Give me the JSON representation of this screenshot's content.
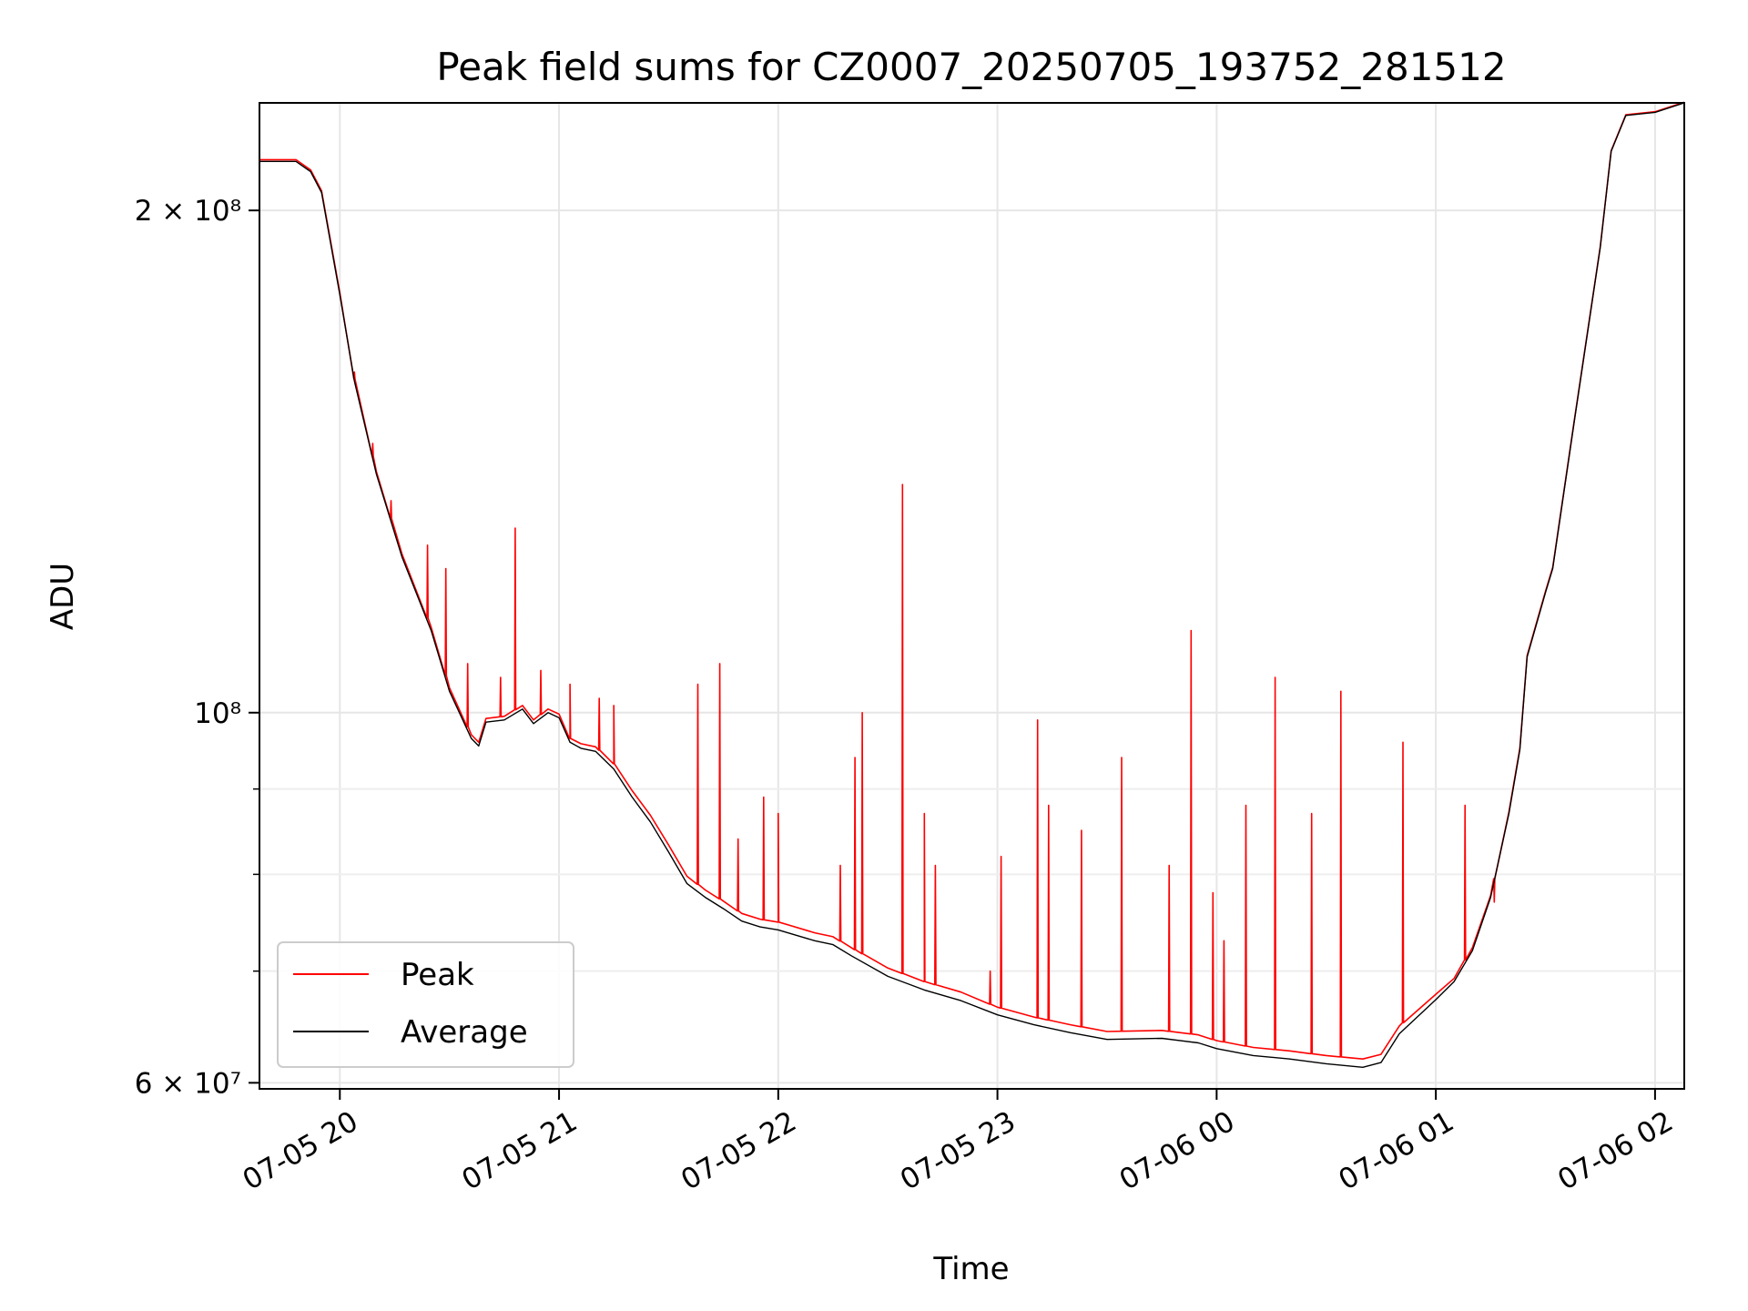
{
  "chart_data": {
    "type": "line",
    "title": "Peak field sums for CZ0007_20250705_193752_281512",
    "xlabel": "Time",
    "ylabel": "ADU",
    "y_scale": "log",
    "ylim": [
      59500000,
      232000000
    ],
    "xlim": [
      "2025-07-05 19:38",
      "2025-07-06 02:08"
    ],
    "grid": true,
    "legend_position": "lower-left",
    "x_ticks": [
      {
        "value": "2025-07-05 20:00",
        "label": "07-05 20"
      },
      {
        "value": "2025-07-05 21:00",
        "label": "07-05 21"
      },
      {
        "value": "2025-07-05 22:00",
        "label": "07-05 22"
      },
      {
        "value": "2025-07-05 23:00",
        "label": "07-05 23"
      },
      {
        "value": "2025-07-06 00:00",
        "label": "07-06 00"
      },
      {
        "value": "2025-07-06 01:00",
        "label": "07-06 01"
      },
      {
        "value": "2025-07-06 02:00",
        "label": "07-06 02"
      }
    ],
    "y_ticks": [
      {
        "value": 60000000,
        "label": "6 × 10⁷"
      },
      {
        "value": 100000000,
        "label": "10⁸"
      },
      {
        "value": 200000000,
        "label": "2 × 10⁸"
      }
    ],
    "y_minor_ticks": [
      70000000,
      80000000,
      90000000
    ],
    "series": [
      {
        "name": "Average",
        "color": "#000000",
        "points": [
          [
            "2025-07-05 19:38",
            214000000
          ],
          [
            "2025-07-05 19:48",
            214000000
          ],
          [
            "2025-07-05 19:52",
            211000000
          ],
          [
            "2025-07-05 19:55",
            205000000
          ],
          [
            "2025-07-05 20:00",
            178000000
          ],
          [
            "2025-07-05 20:04",
            158000000
          ],
          [
            "2025-07-05 20:10",
            139000000
          ],
          [
            "2025-07-05 20:17",
            124000000
          ],
          [
            "2025-07-05 20:25",
            112000000
          ],
          [
            "2025-07-05 20:30",
            103000000
          ],
          [
            "2025-07-05 20:36",
            96500000
          ],
          [
            "2025-07-05 20:38",
            95500000
          ],
          [
            "2025-07-05 20:40",
            98700000
          ],
          [
            "2025-07-05 20:45",
            99000000
          ],
          [
            "2025-07-05 20:50",
            100500000
          ],
          [
            "2025-07-05 20:53",
            98500000
          ],
          [
            "2025-07-05 20:57",
            100000000
          ],
          [
            "2025-07-05 21:00",
            99300000
          ],
          [
            "2025-07-05 21:03",
            96000000
          ],
          [
            "2025-07-05 21:06",
            95200000
          ],
          [
            "2025-07-05 21:10",
            94800000
          ],
          [
            "2025-07-05 21:15",
            92500000
          ],
          [
            "2025-07-05 21:20",
            89000000
          ],
          [
            "2025-07-05 21:25",
            86000000
          ],
          [
            "2025-07-05 21:30",
            82500000
          ],
          [
            "2025-07-05 21:35",
            79000000
          ],
          [
            "2025-07-05 21:40",
            77500000
          ],
          [
            "2025-07-05 21:45",
            76300000
          ],
          [
            "2025-07-05 21:50",
            75000000
          ],
          [
            "2025-07-05 21:55",
            74400000
          ],
          [
            "2025-07-05 22:00",
            74100000
          ],
          [
            "2025-07-05 22:10",
            73000000
          ],
          [
            "2025-07-05 22:15",
            72600000
          ],
          [
            "2025-07-05 22:20",
            71500000
          ],
          [
            "2025-07-05 22:30",
            69500000
          ],
          [
            "2025-07-05 22:40",
            68200000
          ],
          [
            "2025-07-05 22:50",
            67200000
          ],
          [
            "2025-07-05 23:00",
            65900000
          ],
          [
            "2025-07-05 23:10",
            65000000
          ],
          [
            "2025-07-05 23:20",
            64300000
          ],
          [
            "2025-07-05 23:30",
            63700000
          ],
          [
            "2025-07-05 23:45",
            63800000
          ],
          [
            "2025-07-05 23:55",
            63400000
          ],
          [
            "2025-07-06 00:00",
            62900000
          ],
          [
            "2025-07-06 00:10",
            62300000
          ],
          [
            "2025-07-06 00:20",
            62000000
          ],
          [
            "2025-07-06 00:30",
            61600000
          ],
          [
            "2025-07-06 00:40",
            61300000
          ],
          [
            "2025-07-06 00:45",
            61700000
          ],
          [
            "2025-07-06 00:50",
            64200000
          ],
          [
            "2025-07-06 01:00",
            67300000
          ],
          [
            "2025-07-06 01:05",
            69000000
          ],
          [
            "2025-07-06 01:10",
            72000000
          ],
          [
            "2025-07-06 01:15",
            77500000
          ],
          [
            "2025-07-06 01:20",
            87000000
          ],
          [
            "2025-07-06 01:23",
            95000000
          ],
          [
            "2025-07-06 01:25",
            108000000
          ],
          [
            "2025-07-06 01:30",
            118000000
          ],
          [
            "2025-07-06 01:32",
            122000000
          ],
          [
            "2025-07-06 01:38",
            150000000
          ],
          [
            "2025-07-06 01:45",
            190000000
          ],
          [
            "2025-07-06 01:48",
            217000000
          ],
          [
            "2025-07-06 01:52",
            228000000
          ],
          [
            "2025-07-06 02:00",
            229000000
          ],
          [
            "2025-07-06 02:08",
            232000000
          ]
        ]
      },
      {
        "name": "Peak",
        "color": "#ff0000",
        "points": [
          [
            "2025-07-05 19:38",
            214500000
          ],
          [
            "2025-07-05 19:48",
            214500000
          ],
          [
            "2025-07-05 19:52",
            211500000
          ],
          [
            "2025-07-05 19:55",
            205500000
          ],
          [
            "2025-07-05 20:00",
            178500000
          ],
          [
            "2025-07-05 20:04",
            158500000
          ],
          [
            "2025-07-05 20:10",
            139500000
          ],
          [
            "2025-07-05 20:17",
            124500000
          ],
          [
            "2025-07-05 20:25",
            112500000
          ],
          [
            "2025-07-05 20:30",
            103500000
          ],
          [
            "2025-07-05 20:36",
            97000000
          ],
          [
            "2025-07-05 20:38",
            96000000
          ],
          [
            "2025-07-05 20:40",
            99200000
          ],
          [
            "2025-07-05 20:45",
            99500000
          ],
          [
            "2025-07-05 20:50",
            101000000
          ],
          [
            "2025-07-05 20:53",
            99000000
          ],
          [
            "2025-07-05 20:57",
            100500000
          ],
          [
            "2025-07-05 21:00",
            99800000
          ],
          [
            "2025-07-05 21:03",
            96500000
          ],
          [
            "2025-07-05 21:06",
            95800000
          ],
          [
            "2025-07-05 21:10",
            95400000
          ],
          [
            "2025-07-05 21:15",
            93200000
          ],
          [
            "2025-07-05 21:20",
            89800000
          ],
          [
            "2025-07-05 21:25",
            86800000
          ],
          [
            "2025-07-05 21:30",
            83300000
          ],
          [
            "2025-07-05 21:35",
            79800000
          ],
          [
            "2025-07-05 21:40",
            78300000
          ],
          [
            "2025-07-05 21:45",
            77100000
          ],
          [
            "2025-07-05 21:50",
            75800000
          ],
          [
            "2025-07-05 21:55",
            75200000
          ],
          [
            "2025-07-05 22:00",
            74900000
          ],
          [
            "2025-07-05 22:10",
            73800000
          ],
          [
            "2025-07-05 22:15",
            73400000
          ],
          [
            "2025-07-05 22:20",
            72300000
          ],
          [
            "2025-07-05 22:30",
            70300000
          ],
          [
            "2025-07-05 22:40",
            69000000
          ],
          [
            "2025-07-05 22:50",
            68000000
          ],
          [
            "2025-07-05 23:00",
            66600000
          ],
          [
            "2025-07-05 23:10",
            65700000
          ],
          [
            "2025-07-05 23:20",
            65000000
          ],
          [
            "2025-07-05 23:30",
            64400000
          ],
          [
            "2025-07-05 23:45",
            64500000
          ],
          [
            "2025-07-05 23:55",
            64100000
          ],
          [
            "2025-07-06 00:00",
            63600000
          ],
          [
            "2025-07-06 00:10",
            63000000
          ],
          [
            "2025-07-06 00:20",
            62700000
          ],
          [
            "2025-07-06 00:30",
            62300000
          ],
          [
            "2025-07-06 00:40",
            62000000
          ],
          [
            "2025-07-06 00:45",
            62400000
          ],
          [
            "2025-07-06 00:50",
            64900000
          ],
          [
            "2025-07-06 01:00",
            67800000
          ],
          [
            "2025-07-06 01:05",
            69300000
          ],
          [
            "2025-07-06 01:10",
            72300000
          ],
          [
            "2025-07-06 01:15",
            77700000
          ],
          [
            "2025-07-06 01:20",
            87200000
          ],
          [
            "2025-07-06 01:23",
            95200000
          ],
          [
            "2025-07-06 01:25",
            108200000
          ],
          [
            "2025-07-06 01:30",
            118200000
          ],
          [
            "2025-07-06 01:32",
            122200000
          ],
          [
            "2025-07-06 01:38",
            150200000
          ],
          [
            "2025-07-06 01:45",
            190200000
          ],
          [
            "2025-07-06 01:48",
            217200000
          ],
          [
            "2025-07-06 01:52",
            228200000
          ],
          [
            "2025-07-06 02:00",
            229200000
          ],
          [
            "2025-07-06 02:08",
            232200000
          ]
        ],
        "spikes": [
          [
            "2025-07-05 20:04",
            160000000
          ],
          [
            "2025-07-05 20:09",
            145000000
          ],
          [
            "2025-07-05 20:14",
            134000000
          ],
          [
            "2025-07-05 20:24",
            126000000
          ],
          [
            "2025-07-05 20:29",
            122000000
          ],
          [
            "2025-07-05 20:35",
            107000000
          ],
          [
            "2025-07-05 20:44",
            105000000
          ],
          [
            "2025-07-05 20:48",
            129000000
          ],
          [
            "2025-07-05 20:55",
            106000000
          ],
          [
            "2025-07-05 21:03",
            104000000
          ],
          [
            "2025-07-05 21:11",
            102000000
          ],
          [
            "2025-07-05 21:15",
            101000000
          ],
          [
            "2025-07-05 21:38",
            104000000
          ],
          [
            "2025-07-05 21:44",
            107000000
          ],
          [
            "2025-07-05 21:49",
            84000000
          ],
          [
            "2025-07-05 21:56",
            89000000
          ],
          [
            "2025-07-05 22:00",
            87000000
          ],
          [
            "2025-07-05 22:17",
            81000000
          ],
          [
            "2025-07-05 22:21",
            94000000
          ],
          [
            "2025-07-05 22:23",
            100000000
          ],
          [
            "2025-07-05 22:34",
            137000000
          ],
          [
            "2025-07-05 22:40",
            87000000
          ],
          [
            "2025-07-05 22:43",
            81000000
          ],
          [
            "2025-07-05 22:58",
            70000000
          ],
          [
            "2025-07-05 23:01",
            82000000
          ],
          [
            "2025-07-05 23:11",
            99000000
          ],
          [
            "2025-07-05 23:14",
            88000000
          ],
          [
            "2025-07-05 23:23",
            85000000
          ],
          [
            "2025-07-05 23:34",
            94000000
          ],
          [
            "2025-07-05 23:47",
            81000000
          ],
          [
            "2025-07-05 23:53",
            112000000
          ],
          [
            "2025-07-05 23:59",
            78000000
          ],
          [
            "2025-07-06 00:02",
            73000000
          ],
          [
            "2025-07-06 00:08",
            88000000
          ],
          [
            "2025-07-06 00:16",
            105000000
          ],
          [
            "2025-07-06 00:26",
            87000000
          ],
          [
            "2025-07-06 00:34",
            103000000
          ],
          [
            "2025-07-06 00:51",
            96000000
          ],
          [
            "2025-07-06 01:08",
            88000000
          ],
          [
            "2025-07-06 01:16",
            77000000
          ]
        ]
      }
    ]
  },
  "legend": {
    "items": [
      {
        "label": "Peak",
        "color": "#ff0000"
      },
      {
        "label": "Average",
        "color": "#000000"
      }
    ]
  }
}
